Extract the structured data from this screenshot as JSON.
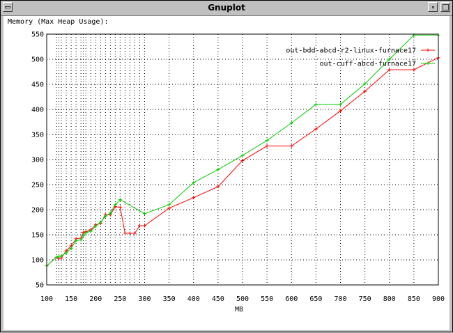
{
  "window": {
    "title": "Gnuplot"
  },
  "chart_data": {
    "type": "line",
    "title": "Memory (Max Heap Usage):",
    "xlabel": "MB",
    "ylabel": "",
    "xlim": [
      100,
      900
    ],
    "ylim": [
      50,
      550
    ],
    "xticks": [
      100,
      150,
      200,
      250,
      300,
      350,
      400,
      450,
      500,
      550,
      600,
      650,
      700,
      750,
      800,
      850,
      900
    ],
    "yticks": [
      50,
      100,
      150,
      200,
      250,
      300,
      350,
      400,
      450,
      500,
      550
    ],
    "legend_position": "top-right",
    "grid": true,
    "series": [
      {
        "name": "out-bdd-abcd-r2-linux-furnace17",
        "color": "#ff0000",
        "x": [
          100,
          120,
          125,
          130,
          140,
          150,
          160,
          170,
          175,
          180,
          190,
          200,
          210,
          220,
          230,
          240,
          250,
          260,
          270,
          280,
          290,
          300,
          350,
          400,
          450,
          500,
          550,
          600,
          650,
          700,
          750,
          800,
          850,
          900
        ],
        "y": [
          88,
          105,
          103,
          104,
          118,
          128,
          142,
          143,
          155,
          156,
          160,
          170,
          173,
          190,
          190,
          206,
          205,
          153,
          153,
          153,
          168,
          168,
          203,
          224,
          246,
          298,
          327,
          327,
          361,
          397,
          436,
          479,
          479,
          503
        ]
      },
      {
        "name": "out-cuff-abcd-furnace17",
        "color": "#00cc00",
        "x": [
          100,
          120,
          125,
          130,
          140,
          150,
          160,
          170,
          175,
          180,
          190,
          200,
          210,
          220,
          230,
          240,
          250,
          300,
          350,
          400,
          450,
          500,
          550,
          600,
          650,
          700,
          750,
          800,
          850,
          900
        ],
        "y": [
          88,
          105,
          107,
          108,
          114,
          123,
          138,
          140,
          148,
          154,
          157,
          167,
          175,
          187,
          193,
          210,
          220,
          192,
          210,
          254,
          280,
          308,
          338,
          373,
          410,
          410,
          451,
          500,
          548,
          548
        ]
      }
    ]
  }
}
